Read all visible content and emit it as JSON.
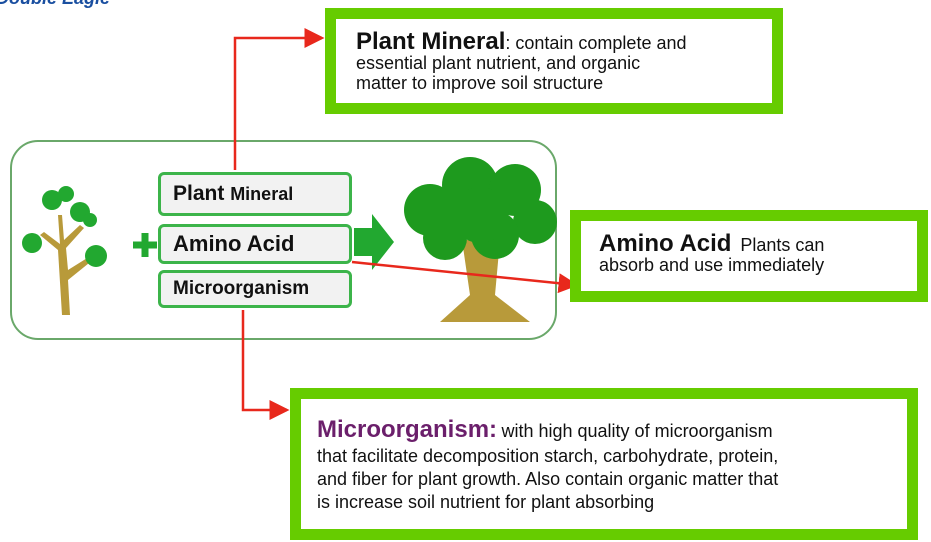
{
  "logo": "Double Eagle",
  "center": {
    "items": [
      {
        "main": "Plant",
        "rest": "Mineral"
      },
      {
        "main": "Amino Acid"
      },
      {
        "main": "Microorganism"
      }
    ]
  },
  "callouts": [
    {
      "title": "Plant Mineral",
      "lines": [
        ": contain complete and",
        "essential plant nutrient, and organic",
        "matter to improve soil structure"
      ]
    },
    {
      "title": "Amino Acid",
      "lines": [
        "Plants can",
        "absorb and use immediately"
      ]
    },
    {
      "title": "Microorganism:",
      "lines": [
        "with high quality of microorganism",
        "that facilitate decomposition starch, carbohydrate, protein,",
        "and fiber for plant  growth. Also contain organic matter that",
        "is increase soil nutrient for plant absorbing"
      ]
    }
  ]
}
